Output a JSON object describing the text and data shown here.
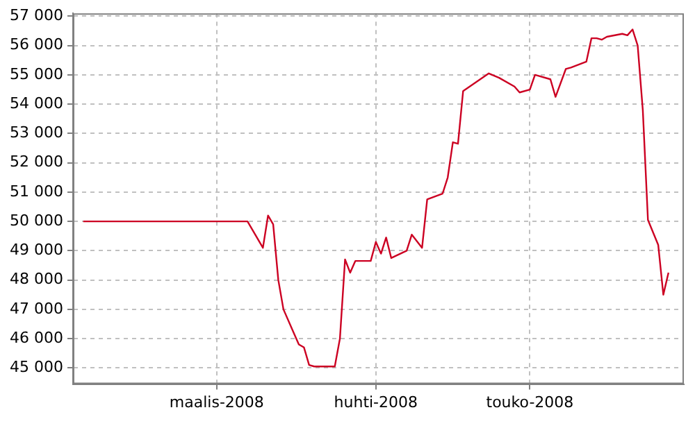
{
  "chart_data": {
    "type": "line",
    "x": [
      "2008-02-04",
      "2008-03-07",
      "2008-03-10",
      "2008-03-11",
      "2008-03-12",
      "2008-03-13",
      "2008-03-14",
      "2008-03-16",
      "2008-03-17",
      "2008-03-18",
      "2008-03-19",
      "2008-03-20",
      "2008-03-24",
      "2008-03-25",
      "2008-03-26",
      "2008-03-27",
      "2008-03-28",
      "2008-03-31",
      "2008-04-01",
      "2008-04-02",
      "2008-04-03",
      "2008-04-04",
      "2008-04-07",
      "2008-04-08",
      "2008-04-10",
      "2008-04-11",
      "2008-04-14",
      "2008-04-15",
      "2008-04-16",
      "2008-04-17",
      "2008-04-18",
      "2008-04-23",
      "2008-04-25",
      "2008-04-28",
      "2008-04-29",
      "2008-05-01",
      "2008-05-02",
      "2008-05-05",
      "2008-05-06",
      "2008-05-08",
      "2008-05-09",
      "2008-05-12",
      "2008-05-13",
      "2008-05-14",
      "2008-05-15",
      "2008-05-16",
      "2008-05-19",
      "2008-05-20",
      "2008-05-21",
      "2008-05-22",
      "2008-05-23",
      "2008-05-24",
      "2008-05-26",
      "2008-05-27",
      "2008-05-28"
    ],
    "series": [
      {
        "color": "#cc0022",
        "values": [
          50000,
          50000,
          49100,
          50200,
          49900,
          48000,
          47000,
          46200,
          45800,
          45700,
          45100,
          45050,
          45050,
          46000,
          48700,
          48250,
          48650,
          48650,
          49300,
          48900,
          49450,
          48750,
          49000,
          49550,
          49100,
          50750,
          50950,
          51500,
          52700,
          52650,
          54450,
          55050,
          54900,
          54600,
          54400,
          54500,
          55000,
          54850,
          54250,
          55200,
          55250,
          55450,
          56250,
          56250,
          56200,
          56300,
          56400,
          56350,
          56550,
          56000,
          53800,
          50050,
          49200,
          47500,
          48250
        ]
      }
    ],
    "xlim": [
      "2008-02-02",
      "2008-05-31"
    ],
    "xticks": [
      {
        "value": "2008-03-01",
        "label": "maalis-2008"
      },
      {
        "value": "2008-04-01",
        "label": "huhti-2008"
      },
      {
        "value": "2008-05-01",
        "label": "touko-2008"
      }
    ],
    "ylim": [
      44450,
      57100
    ],
    "yticks": [
      {
        "value": 45000,
        "label": "45 000"
      },
      {
        "value": 46000,
        "label": "46 000"
      },
      {
        "value": 47000,
        "label": "47 000"
      },
      {
        "value": 48000,
        "label": "48 000"
      },
      {
        "value": 49000,
        "label": "49 000"
      },
      {
        "value": 50000,
        "label": "50 000"
      },
      {
        "value": 51000,
        "label": "51 000"
      },
      {
        "value": 52000,
        "label": "52 000"
      },
      {
        "value": 53000,
        "label": "53 000"
      },
      {
        "value": 54000,
        "label": "54 000"
      },
      {
        "value": 55000,
        "label": "55 000"
      },
      {
        "value": 56000,
        "label": "56 000"
      },
      {
        "value": 57000,
        "label": "57 000"
      }
    ],
    "grid": true,
    "legend": false,
    "marker": "none",
    "line_style": "solid"
  }
}
